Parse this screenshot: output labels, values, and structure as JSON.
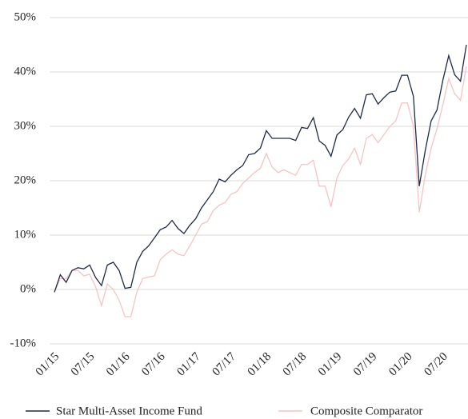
{
  "chart_data": {
    "type": "line",
    "categories": [
      "01/15",
      null,
      null,
      null,
      null,
      null,
      "07/15",
      null,
      null,
      null,
      null,
      null,
      "01/16",
      null,
      null,
      null,
      null,
      null,
      "07/16",
      null,
      null,
      null,
      null,
      null,
      "01/17",
      null,
      null,
      null,
      null,
      null,
      "07/17",
      null,
      null,
      null,
      null,
      null,
      "01/18",
      null,
      null,
      null,
      null,
      null,
      "07/18",
      null,
      null,
      null,
      null,
      null,
      "01/19",
      null,
      null,
      null,
      null,
      null,
      "07/19",
      null,
      null,
      null,
      null,
      null,
      "01/20",
      null,
      null,
      null,
      null,
      null,
      "07/20",
      null,
      null,
      null,
      null
    ],
    "series": [
      {
        "name": "Star Multi-Asset Income Fund",
        "color": "#1f2a44",
        "values": [
          -0.5,
          2.7,
          1.3,
          3.5,
          4.0,
          3.8,
          4.5,
          2.2,
          0.7,
          4.5,
          5.0,
          3.5,
          0.2,
          0.4,
          5.0,
          7.0,
          8.0,
          9.5,
          11.0,
          11.5,
          12.7,
          11.2,
          10.3,
          11.8,
          13.0,
          15.0,
          16.5,
          18.0,
          20.3,
          19.8,
          21.0,
          22.0,
          22.8,
          24.8,
          25.0,
          26.0,
          29.2,
          27.8,
          27.8,
          27.8,
          27.8,
          27.4,
          29.8,
          29.6,
          31.6,
          27.3,
          26.5,
          24.5,
          28.4,
          29.4,
          31.7,
          33.3,
          31.5,
          35.8,
          36.0,
          34.1,
          35.3,
          36.3,
          36.5,
          39.4,
          39.4,
          35.5,
          19.0,
          25.5,
          31.0,
          33.0,
          38.5,
          43.0,
          39.5,
          38.3,
          45.0
        ]
      },
      {
        "name": "Composite Comparator",
        "color": "#f4c4c4",
        "values": [
          -0.5,
          2.0,
          2.0,
          3.5,
          3.5,
          2.5,
          2.8,
          0.5,
          -3.0,
          1.0,
          0.0,
          -2.0,
          -5.0,
          -5.0,
          -0.5,
          2.0,
          2.3,
          2.5,
          5.5,
          6.5,
          7.3,
          6.5,
          6.2,
          8.0,
          10.0,
          12.0,
          12.5,
          14.5,
          15.5,
          16.0,
          17.5,
          18.0,
          19.5,
          20.5,
          21.5,
          22.3,
          25.0,
          22.5,
          21.5,
          22.0,
          21.5,
          21.0,
          23.0,
          23.0,
          23.8,
          19.0,
          19.0,
          15.2,
          20.5,
          22.8,
          24.0,
          26.0,
          23.0,
          27.8,
          28.5,
          27.0,
          28.5,
          30.0,
          31.0,
          34.3,
          34.3,
          30.0,
          14.2,
          21.0,
          26.0,
          29.5,
          34.0,
          38.8,
          36.0,
          34.8,
          41.0
        ]
      }
    ],
    "ylim": [
      -10,
      50
    ],
    "yticks": [
      {
        "value": -10,
        "label": "-10%"
      },
      {
        "value": 0,
        "label": "0%"
      },
      {
        "value": 10,
        "label": "10%"
      },
      {
        "value": 20,
        "label": "20%"
      },
      {
        "value": 30,
        "label": "30%"
      },
      {
        "value": 40,
        "label": "40%"
      },
      {
        "value": 50,
        "label": "50%"
      }
    ],
    "grid": true,
    "legend": "bottom"
  }
}
